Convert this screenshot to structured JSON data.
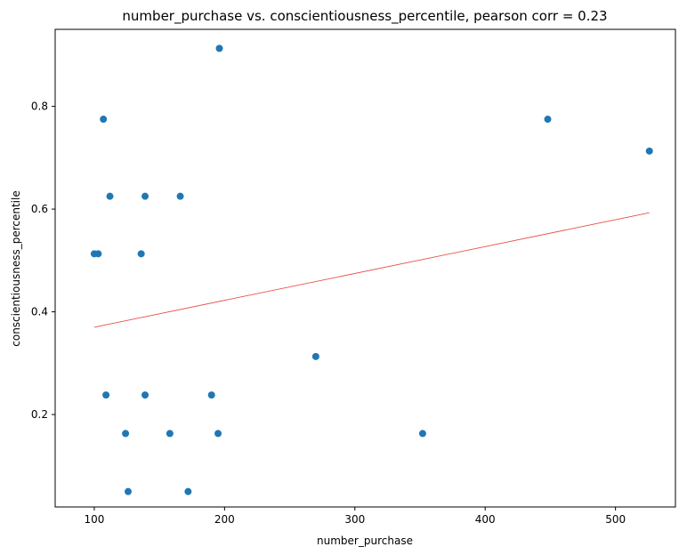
{
  "chart_data": {
    "type": "scatter",
    "title": "number_purchase vs. conscientiousness_percentile, pearson corr = 0.23",
    "xlabel": "number_purchase",
    "ylabel": "conscientiousness_percentile",
    "xlim": [
      70,
      546
    ],
    "ylim": [
      0.02,
      0.95
    ],
    "xticks": [
      100,
      200,
      300,
      400,
      500
    ],
    "yticks": [
      0.2,
      0.4,
      0.6,
      0.8
    ],
    "xtick_labels": [
      "100",
      "200",
      "300",
      "400",
      "500"
    ],
    "ytick_labels": [
      "0.2",
      "0.4",
      "0.6",
      "0.8"
    ],
    "grid": false,
    "colors": {
      "points": "#1f77b4",
      "trendline": "#e8504a"
    },
    "points": [
      {
        "x": 196,
        "y": 0.913
      },
      {
        "x": 107,
        "y": 0.775
      },
      {
        "x": 448,
        "y": 0.775
      },
      {
        "x": 526,
        "y": 0.713
      },
      {
        "x": 112,
        "y": 0.625
      },
      {
        "x": 139,
        "y": 0.625
      },
      {
        "x": 166,
        "y": 0.625
      },
      {
        "x": 100,
        "y": 0.513
      },
      {
        "x": 103,
        "y": 0.513
      },
      {
        "x": 136,
        "y": 0.513
      },
      {
        "x": 270,
        "y": 0.313
      },
      {
        "x": 109,
        "y": 0.238
      },
      {
        "x": 139,
        "y": 0.238
      },
      {
        "x": 190,
        "y": 0.238
      },
      {
        "x": 124,
        "y": 0.163
      },
      {
        "x": 158,
        "y": 0.163
      },
      {
        "x": 195,
        "y": 0.163
      },
      {
        "x": 352,
        "y": 0.163
      },
      {
        "x": 126,
        "y": 0.05
      },
      {
        "x": 172,
        "y": 0.05
      }
    ],
    "trendline": {
      "x": [
        100,
        526
      ],
      "y": [
        0.37,
        0.593
      ]
    }
  }
}
